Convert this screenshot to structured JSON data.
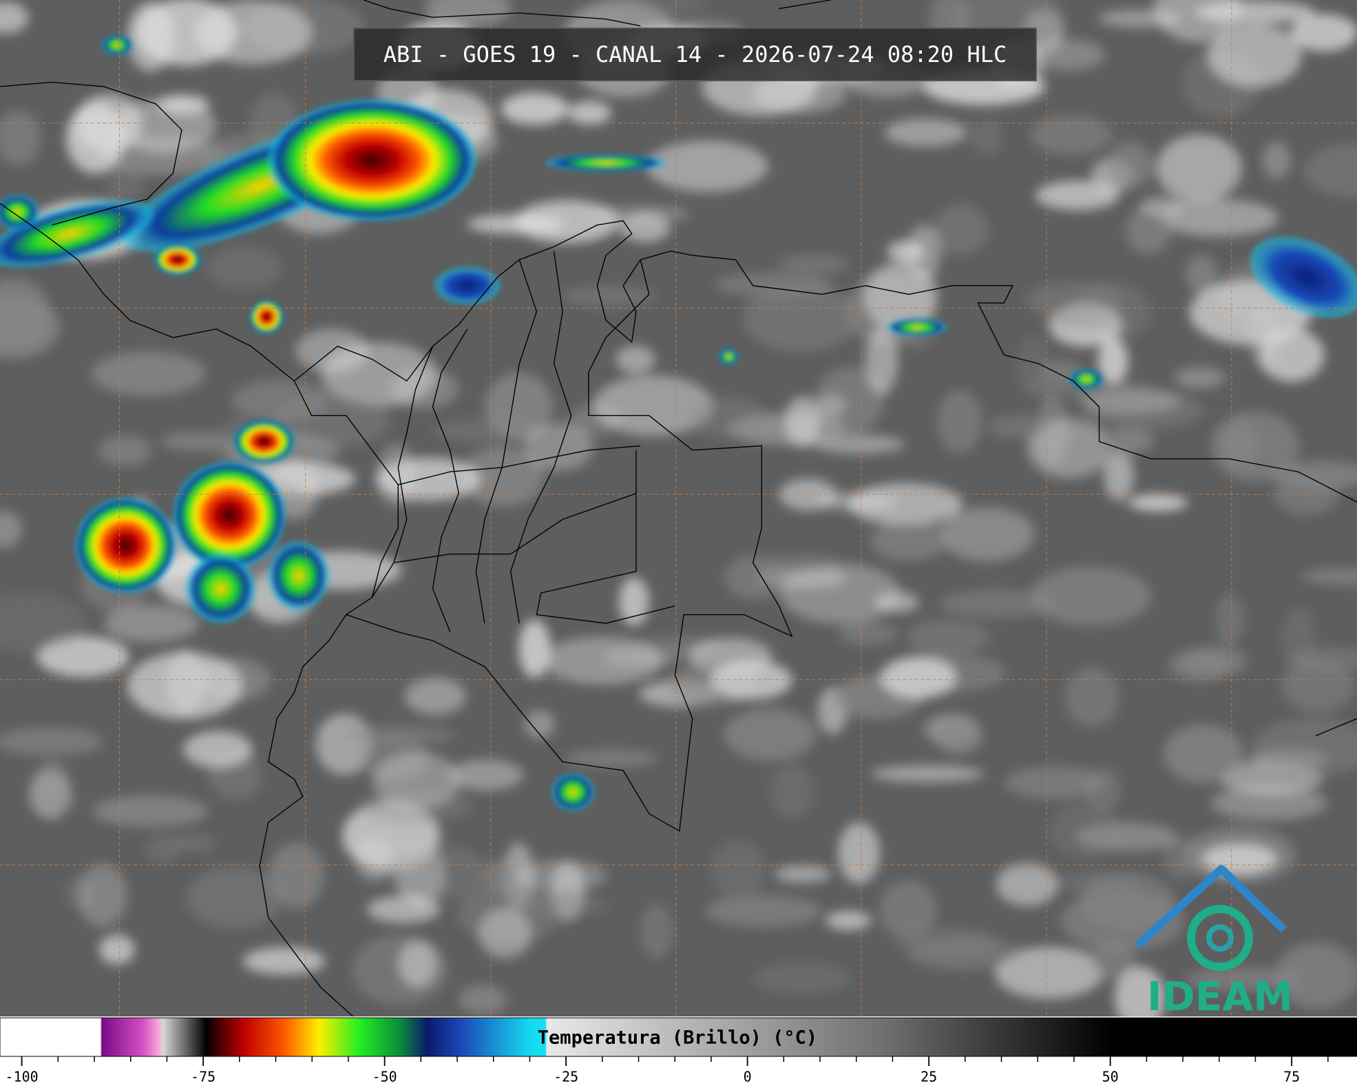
{
  "header": {
    "title": "ABI - GOES 19 - CANAL 14 - 2026-07-24 08:20 HLC"
  },
  "colorbar": {
    "label": "Temperatura (Brillo) (°C)",
    "xlim": [
      -103,
      84
    ],
    "xticks": [
      -100,
      -75,
      -50,
      -25,
      0,
      25,
      50,
      75
    ],
    "minor_ticks": [
      -95,
      -90,
      -85,
      -80,
      -70,
      -65,
      -60,
      -55,
      -45,
      -40,
      -35,
      -30,
      -20,
      -15,
      -10,
      -5,
      5,
      10,
      15,
      20,
      30,
      35,
      40,
      45,
      55,
      60,
      65,
      70,
      80
    ]
  },
  "logo": {
    "text": "IDEAM"
  }
}
